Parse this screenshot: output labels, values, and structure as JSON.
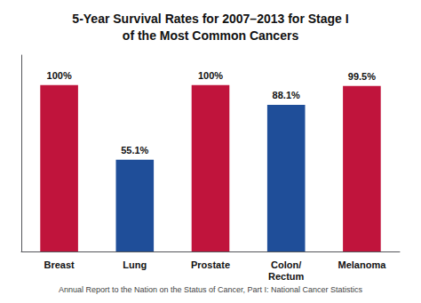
{
  "chart_data": {
    "type": "bar",
    "title": "5-Year Survival Rates for 2007–2013 for Stage I\nof the Most Common Cancers",
    "annotation": "Annual Report to the Nation on the Status of Cancer, Part I: National Cancer Statistics",
    "categories": [
      "Breast",
      "Lung",
      "Prostate",
      "Colon/\nRectum",
      "Melanoma"
    ],
    "values": [
      100,
      55.1,
      100,
      88.1,
      99.5
    ],
    "value_labels": [
      "100%",
      "55.1%",
      "100%",
      "88.1%",
      "99.5%"
    ],
    "colors": [
      "#c0143c",
      "#1f4e99",
      "#c0143c",
      "#1f4e99",
      "#c0143c"
    ],
    "ylim": [
      0,
      118
    ],
    "yticks": [],
    "grid": false,
    "tick_labels": "x"
  }
}
